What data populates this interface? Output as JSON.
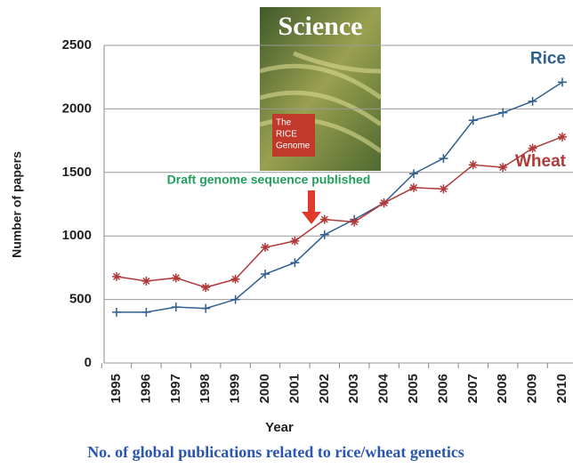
{
  "chart_data": {
    "type": "line",
    "y_label": "Number of papers",
    "x_label": "Year",
    "caption": "No. of global publications related to rice/wheat genetics",
    "annotation": "Draft genome sequence published",
    "cover": {
      "title": "Science",
      "lines": [
        "The",
        "RICE",
        "Genome"
      ]
    },
    "categories": [
      "1995",
      "1996",
      "1997",
      "1998",
      "1999",
      "2000",
      "2001",
      "2002",
      "2003",
      "2004",
      "2005",
      "2006",
      "2007",
      "2008",
      "2009",
      "2010"
    ],
    "series": [
      {
        "name": "Rice",
        "color": "#2e5f8f",
        "marker": "plus",
        "values": [
          400,
          400,
          440,
          430,
          500,
          700,
          790,
          1010,
          1130,
          1260,
          1490,
          1610,
          1910,
          1970,
          2060,
          2210
        ]
      },
      {
        "name": "Wheat",
        "color": "#b03a3a",
        "marker": "star",
        "values": [
          680,
          645,
          670,
          595,
          660,
          910,
          960,
          1130,
          1110,
          1260,
          1380,
          1370,
          1560,
          1540,
          1690,
          1780
        ]
      }
    ],
    "ylim": [
      0,
      2500
    ],
    "yticks": [
      0,
      500,
      1000,
      1500,
      2000,
      2500
    ],
    "grid": true
  }
}
